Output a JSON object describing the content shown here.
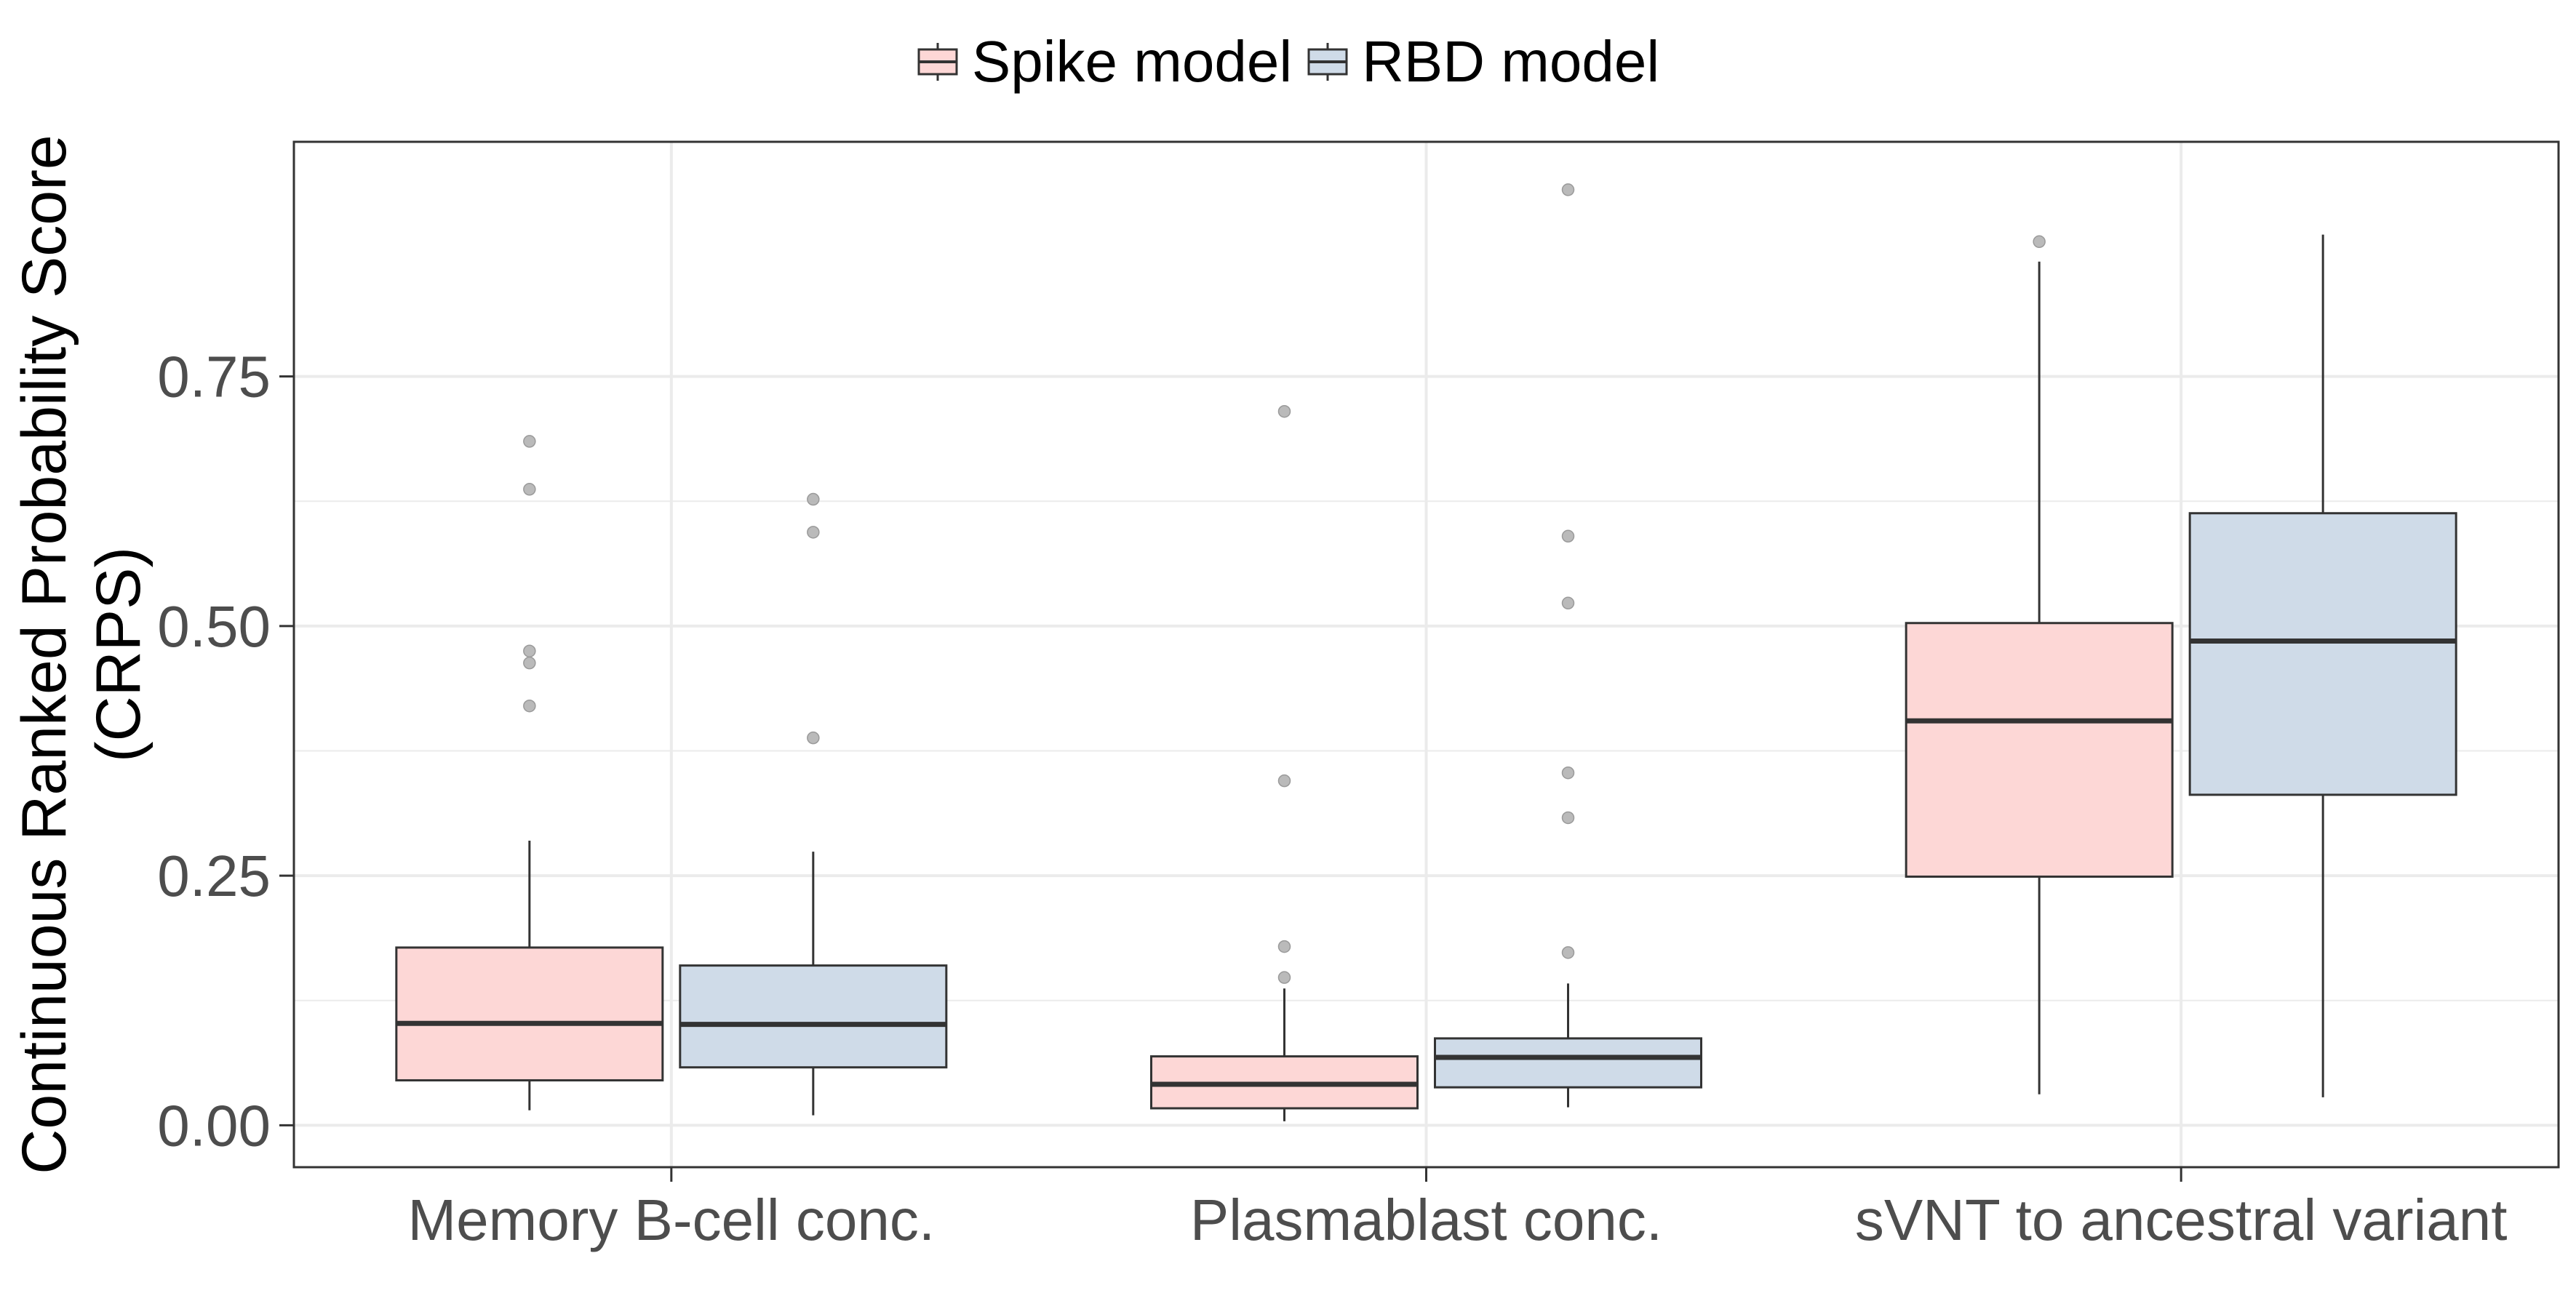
{
  "chart_data": {
    "type": "box",
    "title": "",
    "xlabel": "",
    "ylabel_line1": "Continuous Ranked Probability Score",
    "ylabel_line2": "(CRPS)",
    "categories": [
      "Memory B-cell conc.",
      "Plasmablast conc.",
      "sVNT to ancestral variant"
    ],
    "ylim": [
      -0.042,
      0.985
    ],
    "yticks": [
      0.0,
      0.25,
      0.5,
      0.75
    ],
    "ytick_labels": [
      "0.00",
      "0.25",
      "0.50",
      "0.75"
    ],
    "grid": true,
    "legend_position": "top",
    "series": [
      {
        "name": "Spike model",
        "fill": "#fdd7d6",
        "boxes": [
          {
            "category": "Memory B-cell conc.",
            "whisker_low": 0.015,
            "q1": 0.045,
            "median": 0.102,
            "q3": 0.178,
            "whisker_high": 0.285,
            "outliers": [
              0.685,
              0.637,
              0.475,
              0.463,
              0.42
            ]
          },
          {
            "category": "Plasmablast conc.",
            "whisker_low": 0.004,
            "q1": 0.017,
            "median": 0.041,
            "q3": 0.069,
            "whisker_high": 0.137,
            "outliers": [
              0.715,
              0.345,
              0.179,
              0.148
            ]
          },
          {
            "category": "sVNT to ancestral variant",
            "whisker_low": 0.031,
            "q1": 0.249,
            "median": 0.405,
            "q3": 0.503,
            "whisker_high": 0.865,
            "outliers": [
              0.885
            ]
          }
        ]
      },
      {
        "name": "RBD model",
        "fill": "#cfdbe8",
        "boxes": [
          {
            "category": "Memory B-cell conc.",
            "whisker_low": 0.01,
            "q1": 0.058,
            "median": 0.101,
            "q3": 0.16,
            "whisker_high": 0.274,
            "outliers": [
              0.627,
              0.594,
              0.388
            ]
          },
          {
            "category": "Plasmablast conc.",
            "whisker_low": 0.018,
            "q1": 0.038,
            "median": 0.068,
            "q3": 0.087,
            "whisker_high": 0.142,
            "outliers": [
              0.937,
              0.59,
              0.523,
              0.353,
              0.308,
              0.173
            ]
          },
          {
            "category": "sVNT to ancestral variant",
            "whisker_low": 0.028,
            "q1": 0.331,
            "median": 0.485,
            "q3": 0.613,
            "whisker_high": 0.892,
            "outliers": []
          }
        ]
      }
    ]
  },
  "style": {
    "box_stroke": "#333333",
    "median_stroke": "#333333",
    "outlier_color": "#b3b3b3",
    "grid_color": "#ebebeb",
    "panel_border": "#333333",
    "tick_label_color": "#4d4d4d",
    "axis_title_color": "#000000"
  }
}
